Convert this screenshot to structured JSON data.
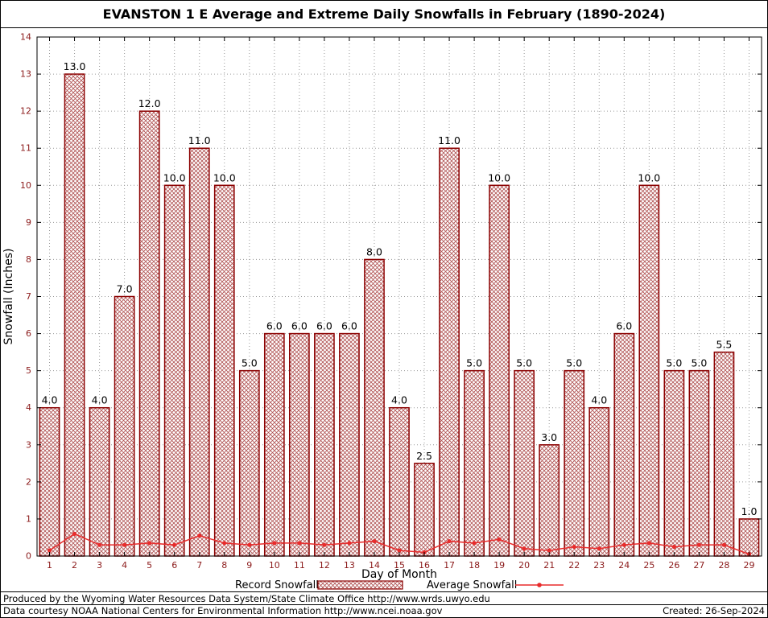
{
  "page": {
    "footer_line1": "Produced by the Wyoming Water Resources Data System/State Climate Office http://www.wrds.uwyo.edu",
    "footer_line2": "Data courtesy NOAA National Centers for Environmental Information http://www.ncei.noaa.gov",
    "created": "Created: 26-Sep-2024"
  },
  "colors": {
    "bar_outline": "#8b0000",
    "bar_hatch": "#b05252",
    "line": "#e82c2c",
    "tick_label": "#8b1a1a",
    "grid": "#9a9a9a",
    "axis": "#000000",
    "text": "#000000"
  },
  "chart_data": {
    "type": "bar",
    "title": "EVANSTON 1 E Average and Extreme Daily Snowfalls in February (1890-2024)",
    "xlabel": "Day of Month",
    "ylabel": "Snowfall (Inches)",
    "ylim": [
      0,
      14
    ],
    "ytick_step": 1,
    "grid": true,
    "legend_position": "bottom",
    "bar_labels": true,
    "categories": [
      1,
      2,
      3,
      4,
      5,
      6,
      7,
      8,
      9,
      10,
      11,
      12,
      13,
      14,
      15,
      16,
      17,
      18,
      19,
      20,
      21,
      22,
      23,
      24,
      25,
      26,
      27,
      28,
      29
    ],
    "series": [
      {
        "name": "Record Snowfall",
        "type": "bar",
        "values": [
          4.0,
          13.0,
          4.0,
          7.0,
          12.0,
          10.0,
          11.0,
          10.0,
          5.0,
          6.0,
          6.0,
          6.0,
          6.0,
          8.0,
          4.0,
          2.5,
          11.0,
          5.0,
          10.0,
          5.0,
          3.0,
          5.0,
          4.0,
          6.0,
          10.0,
          5.0,
          5.0,
          5.5,
          1.0
        ],
        "color": "#8b0000",
        "hatch": true
      },
      {
        "name": "Average Snowfall",
        "type": "line",
        "values": [
          0.15,
          0.6,
          0.3,
          0.3,
          0.35,
          0.3,
          0.55,
          0.35,
          0.3,
          0.35,
          0.35,
          0.3,
          0.35,
          0.4,
          0.15,
          0.1,
          0.4,
          0.35,
          0.45,
          0.2,
          0.15,
          0.25,
          0.2,
          0.3,
          0.35,
          0.25,
          0.3,
          0.3,
          0.05
        ],
        "color": "#e82c2c"
      }
    ]
  }
}
